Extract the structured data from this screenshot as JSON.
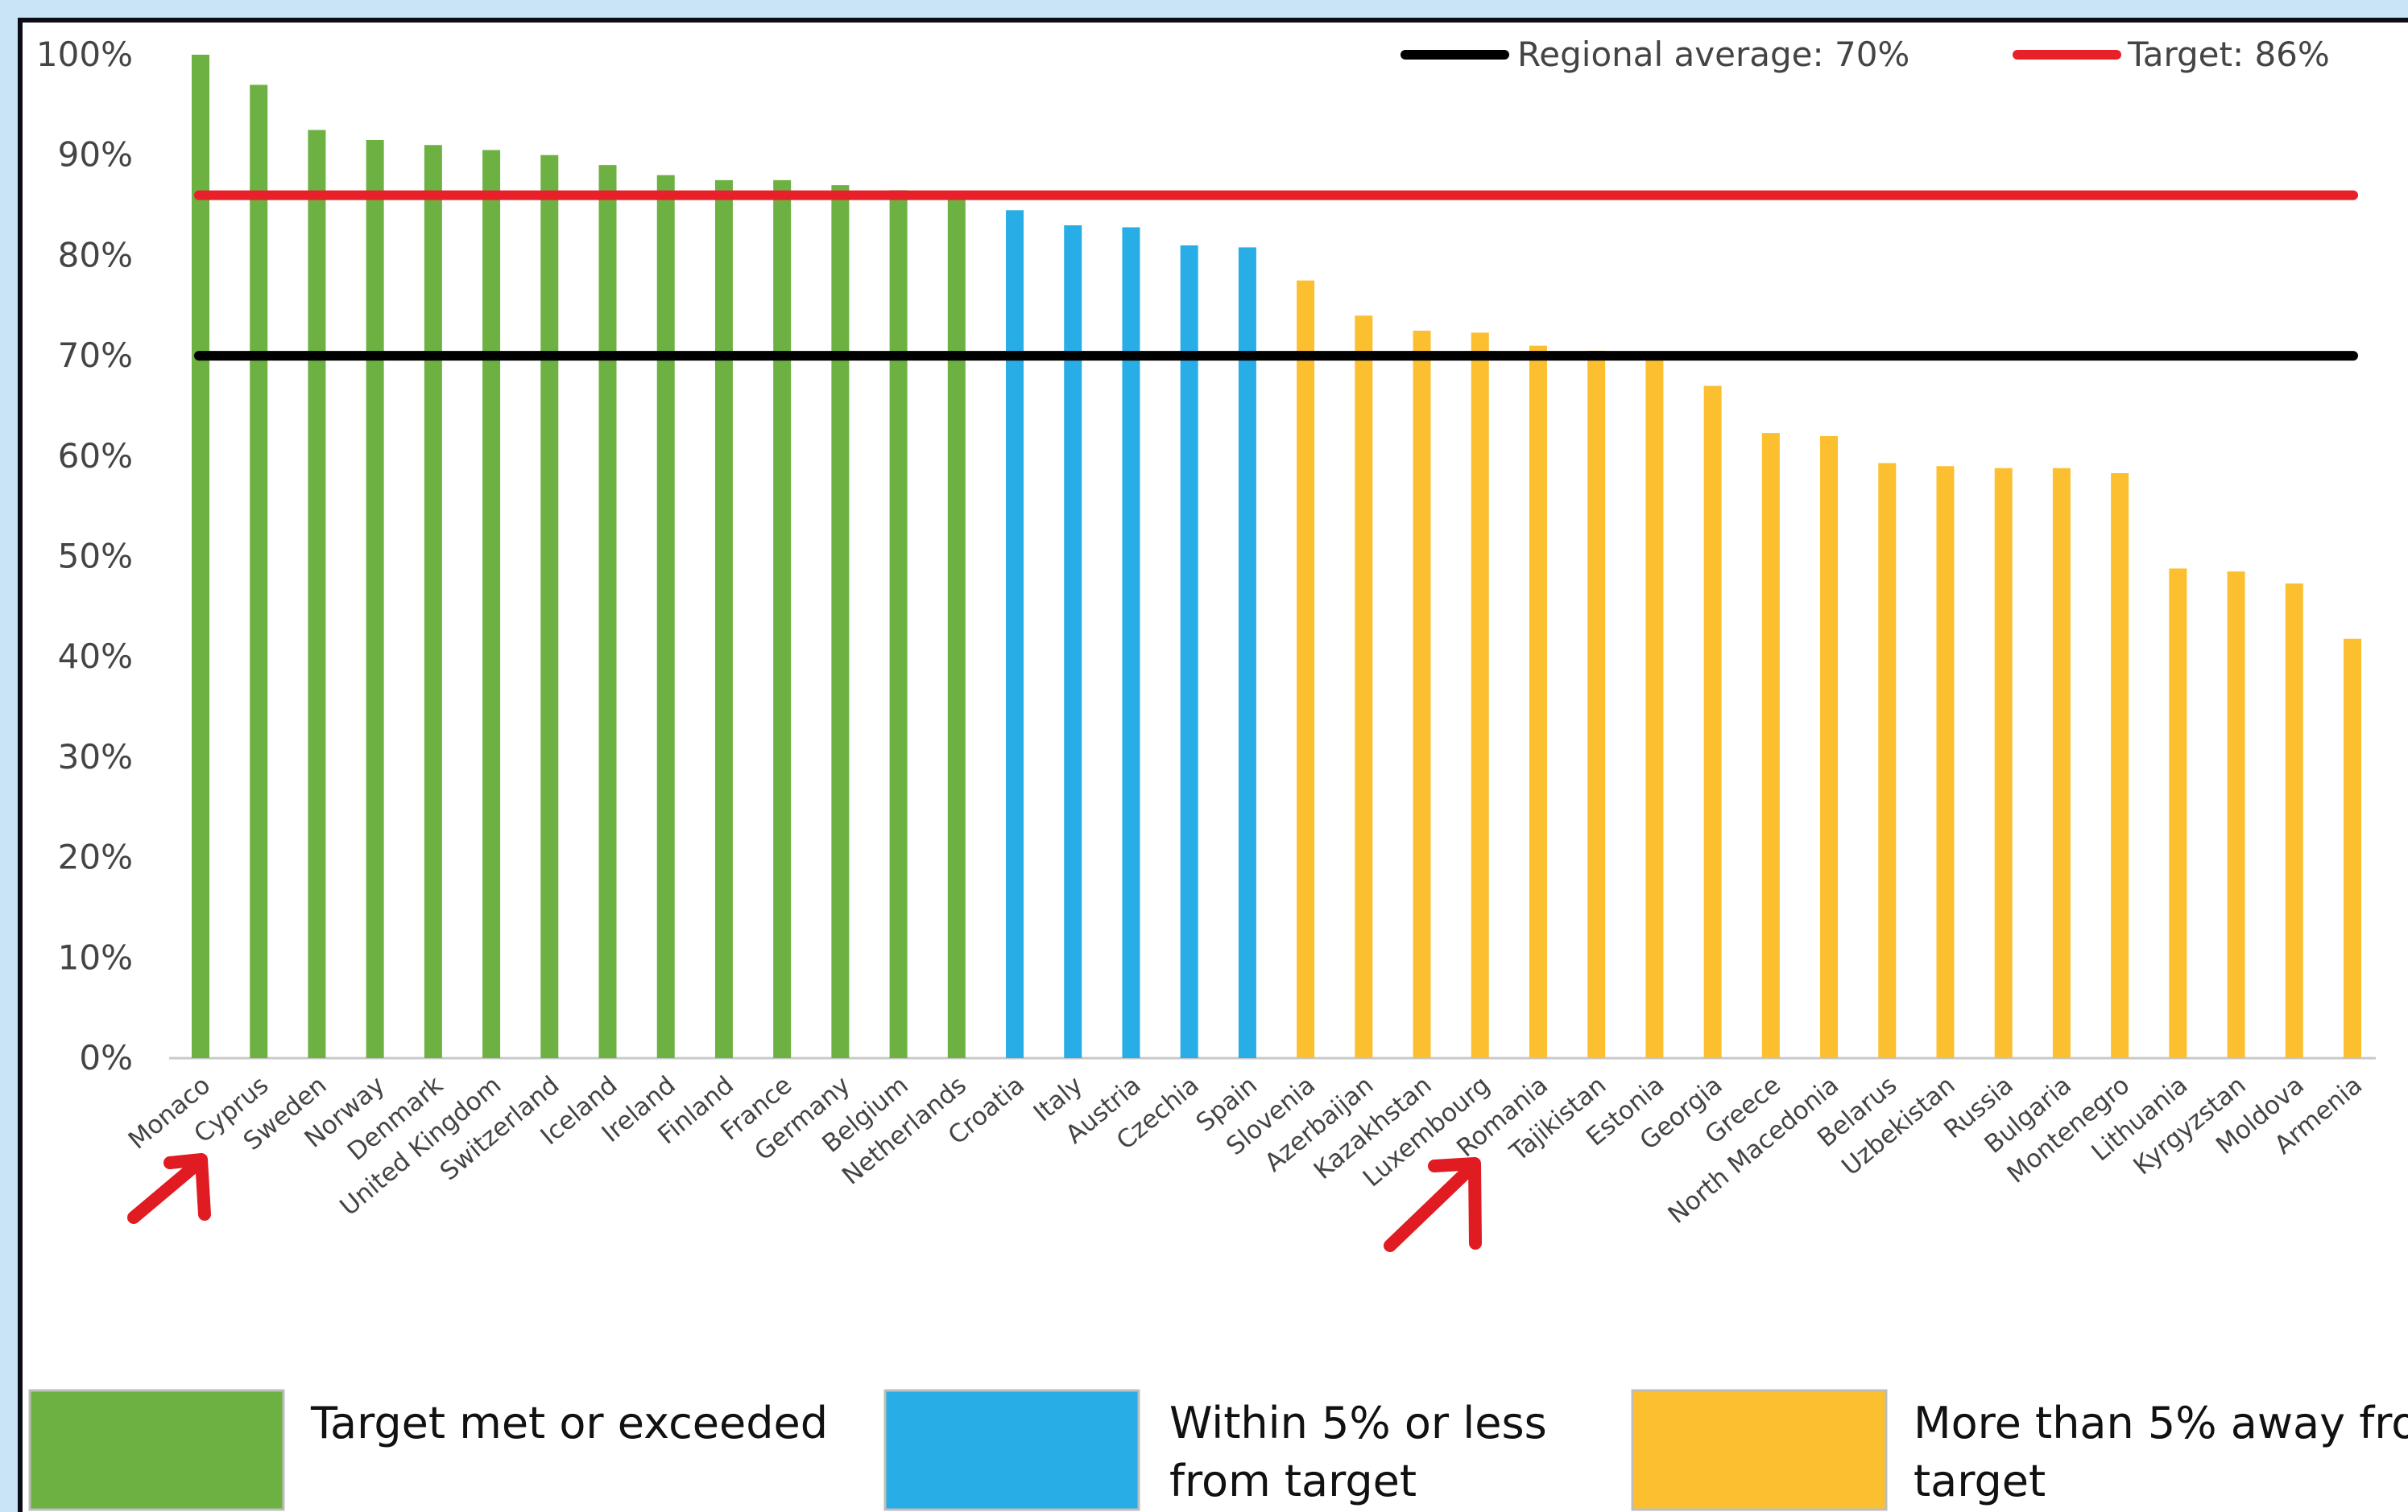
{
  "chart_data": {
    "type": "bar",
    "ylim": [
      0,
      100
    ],
    "yticks": [
      "0%",
      "10%",
      "20%",
      "30%",
      "40%",
      "50%",
      "60%",
      "70%",
      "80%",
      "90%",
      "100%"
    ],
    "categories": [
      "Monaco",
      "Cyprus",
      "Sweden",
      "Norway",
      "Denmark",
      "United Kingdom",
      "Switzerland",
      "Iceland",
      "Ireland",
      "Finland",
      "France",
      "Germany",
      "Belgium",
      "Netherlands",
      "Croatia",
      "Italy",
      "Austria",
      "Czechia",
      "Spain",
      "Slovenia",
      "Azerbaijan",
      "Kazakhstan",
      "Luxembourg",
      "Romania",
      "Tajikistan",
      "Estonia",
      "Georgia",
      "Greece",
      "North Macedonia",
      "Belarus",
      "Uzbekistan",
      "Russia",
      "Bulgaria",
      "Montenegro",
      "Lithuania",
      "Kyrgyzstan",
      "Moldova",
      "Armenia"
    ],
    "values": [
      100,
      97,
      92.5,
      91.5,
      91,
      90.5,
      90,
      89,
      88,
      87.5,
      87.5,
      87,
      86.5,
      86,
      84.5,
      83,
      82.8,
      81,
      80.8,
      77.5,
      74,
      72.5,
      72.3,
      71,
      70.5,
      69.8,
      67,
      62.3,
      62,
      59.3,
      59,
      58.8,
      58.8,
      58.3,
      48.8,
      48.5,
      47.3,
      41.8
    ],
    "groups": [
      "met",
      "met",
      "met",
      "met",
      "met",
      "met",
      "met",
      "met",
      "met",
      "met",
      "met",
      "met",
      "met",
      "met",
      "within",
      "within",
      "within",
      "within",
      "within",
      "away",
      "away",
      "away",
      "away",
      "away",
      "away",
      "away",
      "away",
      "away",
      "away",
      "away",
      "away",
      "away",
      "away",
      "away",
      "away",
      "away",
      "away",
      "away"
    ],
    "group_colors": {
      "met": "#6db143",
      "within": "#28ade6",
      "away": "#fbbf30"
    },
    "reference_lines": [
      {
        "name": "Regional average: 70%",
        "value": 70,
        "color": "#000000"
      },
      {
        "name": "Target: 86%",
        "value": 86,
        "color": "#e8202a"
      }
    ],
    "legend": [
      {
        "group": "met",
        "lines": [
          "Target met or exceeded"
        ]
      },
      {
        "group": "within",
        "lines": [
          "Within 5% or less",
          "from target"
        ]
      },
      {
        "group": "away",
        "lines": [
          "More than 5% away fro",
          "target"
        ]
      }
    ],
    "grid": false
  },
  "annotations": [
    {
      "name": "red-arrow-monaco",
      "color": "#e11b22"
    },
    {
      "name": "red-arrow-luxembourg",
      "color": "#e11b22"
    }
  ]
}
